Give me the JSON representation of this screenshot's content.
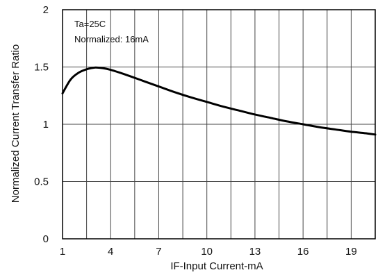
{
  "chart_data": {
    "type": "line",
    "xlabel": "IF-Input Current-mA",
    "ylabel": "Normalized Current Transfer Ratio",
    "xlim": [
      1,
      20.5
    ],
    "ylim": [
      0,
      2
    ],
    "x_ticks": [
      1,
      4,
      7,
      10,
      13,
      16,
      19
    ],
    "y_ticks": [
      0,
      0.5,
      1,
      1.5,
      2
    ],
    "x_tick_labels": [
      "1",
      "4",
      "7",
      "10",
      "13",
      "16",
      "19"
    ],
    "y_tick_labels": [
      "0",
      "0.5",
      "1",
      "1.5",
      "2"
    ],
    "grid": true,
    "annotations": [
      "Ta=25C",
      "Normalized: 16mA"
    ],
    "series": [
      {
        "x": [
          1.0,
          1.5,
          2.0,
          2.5,
          3.0,
          3.5,
          4.0,
          5.0,
          6.0,
          7.0,
          8.0,
          9.0,
          10.0,
          11.0,
          12.0,
          13.0,
          14.0,
          15.0,
          16.0,
          17.0,
          18.0,
          19.0,
          20.0,
          20.5
        ],
        "y": [
          1.27,
          1.39,
          1.45,
          1.48,
          1.495,
          1.49,
          1.475,
          1.43,
          1.38,
          1.33,
          1.28,
          1.235,
          1.195,
          1.155,
          1.12,
          1.085,
          1.055,
          1.025,
          1.0,
          0.975,
          0.955,
          0.935,
          0.92,
          0.91
        ]
      }
    ]
  }
}
